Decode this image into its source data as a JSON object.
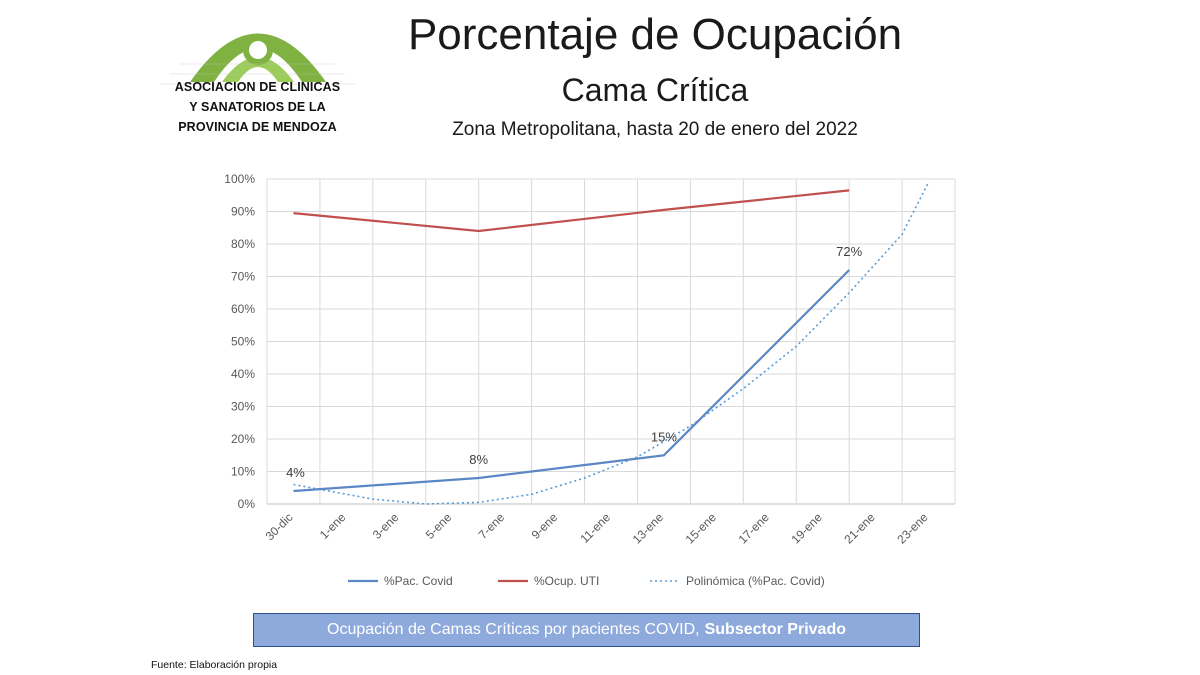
{
  "logo": {
    "lines": [
      "ASOCIACION DE CLINICAS",
      "Y SANATORIOS DE LA",
      "PROVINCIA DE MENDOZA"
    ],
    "green": "#7fb241"
  },
  "header": {
    "title": "Porcentaje de Ocupación",
    "subtitle": "Cama Crítica",
    "zone": "Zona Metropolitana, hasta 20 de enero del 2022"
  },
  "chart_data": {
    "type": "line",
    "x": [
      "30-dic",
      "1-ene",
      "3-ene",
      "5-ene",
      "7-ene",
      "9-ene",
      "11-ene",
      "13-ene",
      "15-ene",
      "17-ene",
      "19-ene",
      "21-ene",
      "23-ene"
    ],
    "ylim": [
      0,
      100
    ],
    "yticks": [
      "0%",
      "10%",
      "20%",
      "30%",
      "40%",
      "50%",
      "60%",
      "70%",
      "80%",
      "90%",
      "100%"
    ],
    "grid": true,
    "legend_position": "bottom",
    "series": [
      {
        "name": "%Pac. Covid",
        "color": "#5b87c5",
        "points": [
          [
            "30-dic",
            4
          ],
          [
            "6-ene",
            8
          ],
          [
            "13-ene",
            15
          ],
          [
            "20-ene",
            72
          ]
        ],
        "labels": [
          "4%",
          "8%",
          "15%",
          "72%"
        ]
      },
      {
        "name": "%Ocup. UTI",
        "color": "#c0504d",
        "points": [
          [
            "30-dic",
            89.5
          ],
          [
            "6-ene",
            84
          ],
          [
            "13-ene",
            90.5
          ],
          [
            "20-ene",
            96.5
          ]
        ]
      },
      {
        "name": "Polinómica (%Pac. Covid)",
        "color": "#5b9bd5",
        "style": "dotted",
        "trend_points": [
          [
            "30-dic",
            6
          ],
          [
            "2-ene",
            1.5
          ],
          [
            "4-ene",
            0
          ],
          [
            "6-ene",
            0.5
          ],
          [
            "8-ene",
            3
          ],
          [
            "10-ene",
            8
          ],
          [
            "12-ene",
            14.5
          ],
          [
            "14-ene",
            24
          ],
          [
            "16-ene",
            35.5
          ],
          [
            "18-ene",
            48.5
          ],
          [
            "20-ene",
            65
          ],
          [
            "22-ene",
            83
          ],
          [
            "23-ene",
            99
          ]
        ]
      }
    ]
  },
  "banner": {
    "text": "Ocupación de Camas Críticas por pacientes COVID,",
    "bold": "Subsector Privado",
    "bg": "#8eaadc"
  },
  "source": "Fuente: Elaboración propia"
}
